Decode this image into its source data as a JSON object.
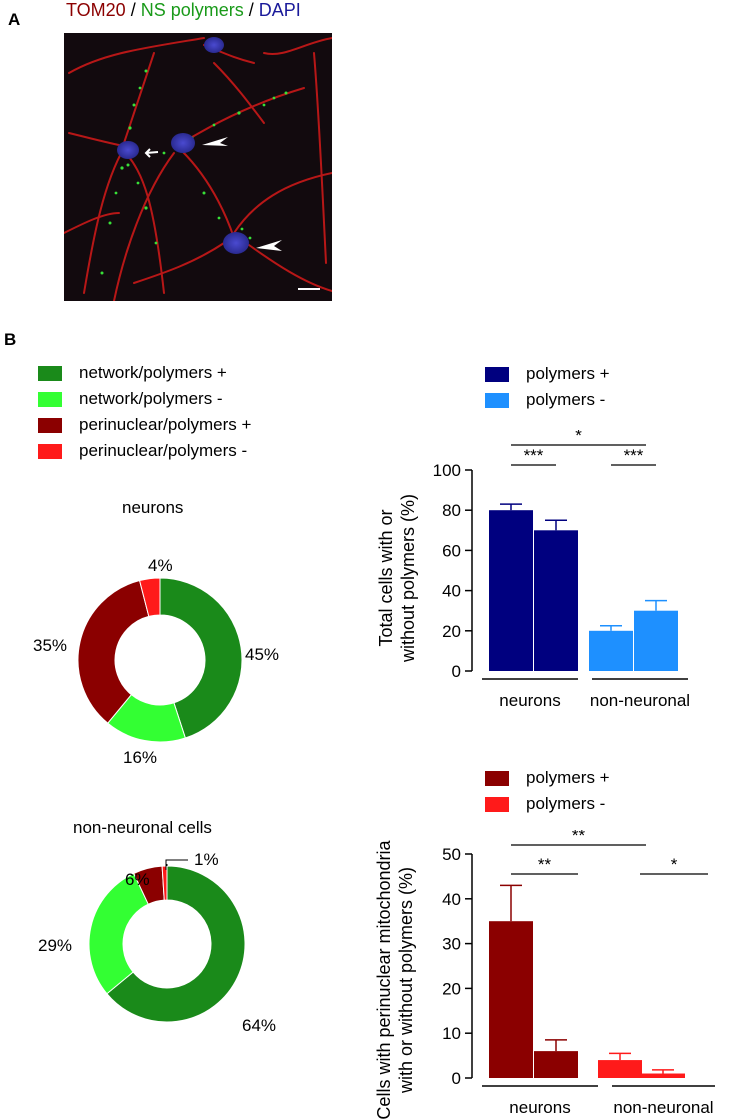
{
  "panelA": {
    "letter": "A",
    "title": [
      {
        "text": "TOM20",
        "color": "#8b0000"
      },
      {
        "text": " / ",
        "color": "#000000"
      },
      {
        "text": "NS polymers",
        "color": "#1a9a1a"
      },
      {
        "text": " / ",
        "color": "#000000"
      },
      {
        "text": "DAPI",
        "color": "#1a1a9a"
      }
    ]
  },
  "panelB": {
    "letter": "B"
  },
  "colors": {
    "network_pos": "#1a8a1a",
    "network_neg": "#33ff33",
    "perinuclear_pos": "#8b0000",
    "perinuclear_neg": "#ff1a1a",
    "total_pos": "#00007f",
    "total_neg": "#1e90ff",
    "peri_pos": "#8b0000",
    "peri_neg": "#ff1a1a"
  },
  "donut_legend": [
    {
      "label": "network/polymers +",
      "color": "#1a8a1a"
    },
    {
      "label": "network/polymers -",
      "color": "#33ff33"
    },
    {
      "label": "perinuclear/polymers +",
      "color": "#8b0000"
    },
    {
      "label": "perinuclear/polymers -",
      "color": "#ff1a1a"
    }
  ],
  "chart_data": [
    {
      "type": "pie",
      "title": "neurons",
      "labels": [
        "network/polymers +",
        "network/polymers -",
        "perinuclear/polymers +",
        "perinuclear/polymers -"
      ],
      "values": [
        45,
        16,
        35,
        4
      ],
      "value_labels": [
        "45%",
        "16%",
        "35%",
        "4%"
      ],
      "colors": [
        "#1a8a1a",
        "#33ff33",
        "#8b0000",
        "#ff1a1a"
      ],
      "hole": true
    },
    {
      "type": "pie",
      "title": "non-neuronal cells",
      "labels": [
        "network/polymers +",
        "network/polymers -",
        "perinuclear/polymers +",
        "perinuclear/polymers -"
      ],
      "values": [
        64,
        29,
        6,
        1
      ],
      "value_labels": [
        "64%",
        "29%",
        "6%",
        "1%"
      ],
      "colors": [
        "#1a8a1a",
        "#33ff33",
        "#8b0000",
        "#ff1a1a"
      ],
      "hole": true
    },
    {
      "type": "bar",
      "ylabel_lines": [
        "Total cells with or",
        "without polymers (%)"
      ],
      "categories": [
        "neurons",
        "non-neuronal"
      ],
      "series": [
        {
          "name": "polymers +",
          "values": [
            80,
            70
          ],
          "errors": [
            3,
            5
          ],
          "color": "#00007f"
        },
        {
          "name": "polymers -",
          "values": [
            20,
            30
          ],
          "errors": [
            2.5,
            5
          ],
          "color": "#1e90ff"
        }
      ],
      "ylim": [
        0,
        100
      ],
      "yticks": [
        "0",
        "20",
        "40",
        "60",
        "80",
        "100"
      ],
      "legend": "top",
      "significance": [
        "***",
        "***",
        "*"
      ]
    },
    {
      "type": "bar",
      "ylabel_lines": [
        "Cells with perinuclear mitochondria",
        "with or without polymers (%)"
      ],
      "categories": [
        "neurons",
        "non-neuronal"
      ],
      "series": [
        {
          "name": "polymers +",
          "values": [
            35,
            6
          ],
          "errors": [
            8,
            2.5
          ],
          "color": "#8b0000"
        },
        {
          "name": "polymers -",
          "values": [
            4,
            1
          ],
          "errors": [
            1.5,
            0.8
          ],
          "color": "#ff1a1a"
        }
      ],
      "ylim": [
        0,
        50
      ],
      "yticks": [
        "0",
        "10",
        "20",
        "30",
        "40",
        "50"
      ],
      "legend": "top",
      "significance": [
        "**",
        "*",
        "**"
      ]
    }
  ]
}
